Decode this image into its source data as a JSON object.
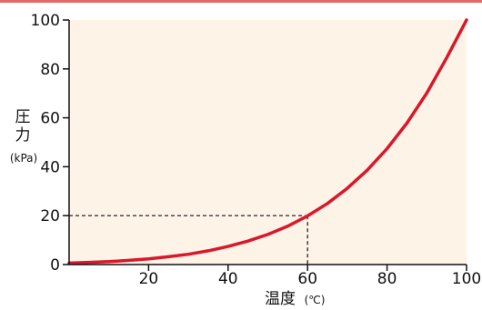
{
  "colors": {
    "top_band": "#e06a6a",
    "plot_background": "#fdf3e7",
    "curve": "#d9182c",
    "axis": "#111111",
    "guide": "#111111"
  },
  "chart_data": {
    "type": "line",
    "title": "",
    "xlabel": "温度",
    "xlabel_unit": "(℃)",
    "ylabel_chars": [
      "圧",
      "力"
    ],
    "ylabel_unit": "(kPa)",
    "xlim": [
      0,
      100
    ],
    "ylim": [
      0,
      100
    ],
    "x_ticks": [
      20,
      40,
      60,
      80,
      100
    ],
    "y_ticks": [
      0,
      20,
      40,
      60,
      80,
      100
    ],
    "grid": false,
    "legend": "none",
    "series": [
      {
        "x": [
          0,
          5,
          10,
          15,
          20,
          25,
          30,
          35,
          40,
          45,
          50,
          55,
          60,
          65,
          70,
          75,
          80,
          85,
          90,
          95,
          100
        ],
        "y": [
          0.6,
          0.9,
          1.2,
          1.7,
          2.3,
          3.2,
          4.2,
          5.6,
          7.4,
          9.6,
          12.3,
          15.7,
          19.9,
          25.0,
          31.2,
          38.6,
          47.4,
          57.8,
          70.1,
          84.5,
          101.3
        ]
      }
    ],
    "reference": {
      "x": 60,
      "y": 20,
      "style": "dashed"
    }
  }
}
